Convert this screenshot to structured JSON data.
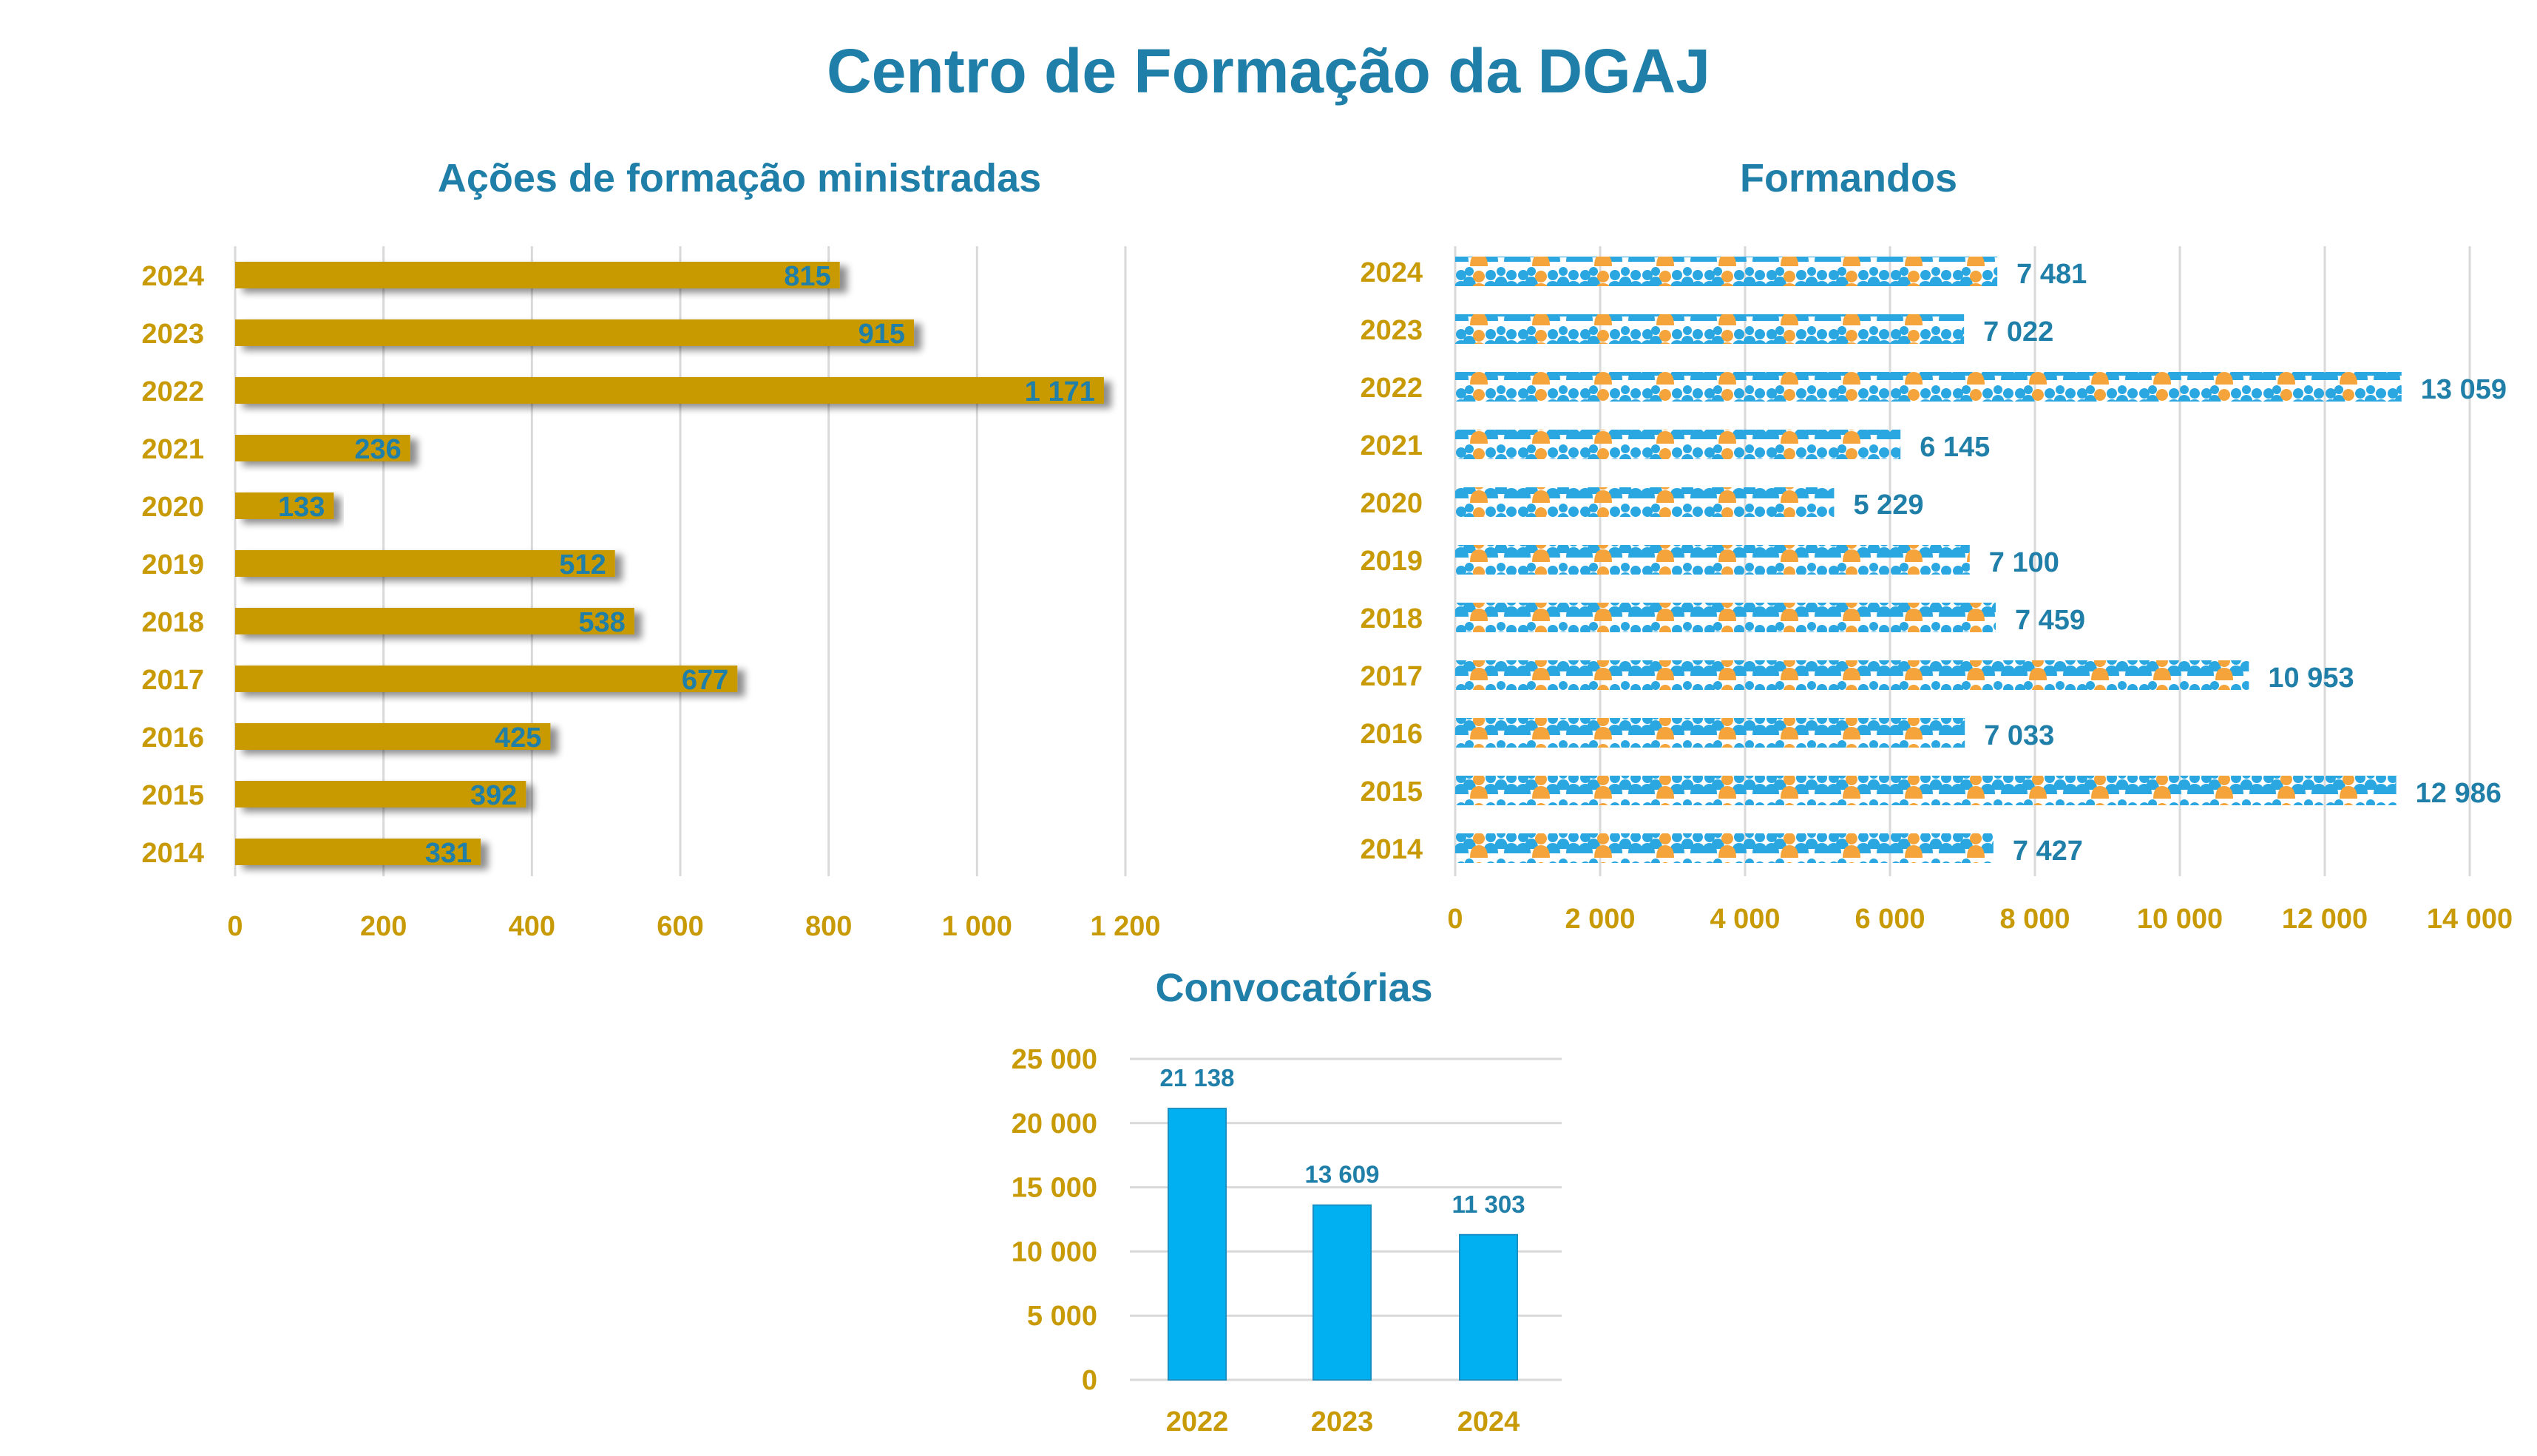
{
  "title": "Centro de Formação da DGAJ",
  "colors": {
    "title": "#1f7fa8",
    "tick": "#c89a06",
    "bar_gold": "#c89a06",
    "person_blue": "#2aa7e0",
    "person_orange": "#f4a43a",
    "bar_blue": "#00b0f0",
    "grid": "#d9d9d9"
  },
  "icons": {
    "formandos_bar_unit": "person-group-icon"
  },
  "chart_data": [
    {
      "type": "bar",
      "orientation": "horizontal",
      "title": "Ações de formação ministradas",
      "categories": [
        "2024",
        "2023",
        "2022",
        "2021",
        "2020",
        "2019",
        "2018",
        "2017",
        "2016",
        "2015",
        "2014"
      ],
      "values": [
        815,
        915,
        1171,
        236,
        133,
        512,
        538,
        677,
        425,
        392,
        331
      ],
      "value_labels": [
        "815",
        "915",
        "1 171",
        "236",
        "133",
        "512",
        "538",
        "677",
        "425",
        "392",
        "331"
      ],
      "xlim": [
        0,
        1200
      ],
      "xticks": [
        "0",
        "200",
        "400",
        "600",
        "800",
        "1 000",
        "1 200"
      ],
      "grid": "vertical"
    },
    {
      "type": "bar",
      "orientation": "horizontal",
      "title": "Formandos",
      "categories": [
        "2024",
        "2023",
        "2022",
        "2021",
        "2020",
        "2019",
        "2018",
        "2017",
        "2016",
        "2015",
        "2014"
      ],
      "values": [
        7481,
        7022,
        13059,
        6145,
        5229,
        7100,
        7459,
        10953,
        7033,
        12986,
        7427
      ],
      "value_labels": [
        "7 481",
        "7 022",
        "13 059",
        "6 145",
        "5 229",
        "7 100",
        "7 459",
        "10 953",
        "7 033",
        "12 986",
        "7 427"
      ],
      "xlim": [
        0,
        14000
      ],
      "xticks": [
        "0",
        "2 000",
        "4 000",
        "6 000",
        "8 000",
        "10 000",
        "12 000",
        "14 000"
      ],
      "grid": "vertical"
    },
    {
      "type": "bar",
      "orientation": "vertical",
      "title": "Convocatórias",
      "categories": [
        "2022",
        "2023",
        "2024"
      ],
      "values": [
        21138,
        13609,
        11303
      ],
      "value_labels": [
        "21 138",
        "13 609",
        "11 303"
      ],
      "ylim": [
        0,
        25000
      ],
      "yticks": [
        "0",
        "5 000",
        "10 000",
        "15 000",
        "20 000",
        "25 000"
      ],
      "grid": "horizontal"
    }
  ]
}
